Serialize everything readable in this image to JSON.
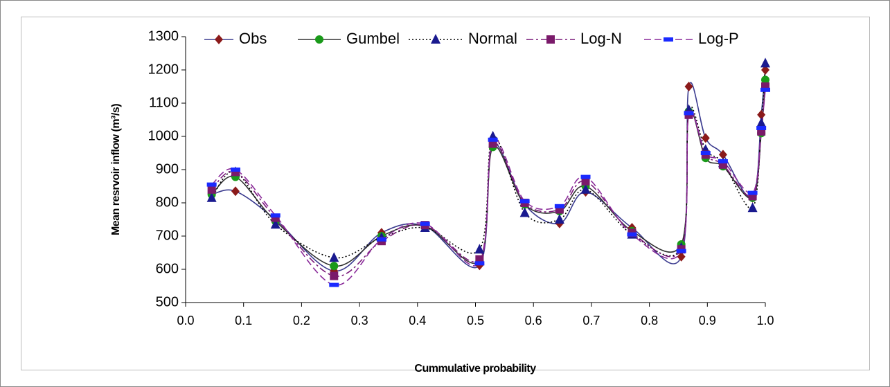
{
  "chart_data": {
    "type": "line",
    "x_label": "Cummulative probability",
    "y_label": "Mean resrvoir inflow (m³/s)",
    "x": [
      0.045,
      0.086,
      0.155,
      0.256,
      0.338,
      0.413,
      0.507,
      0.53,
      0.585,
      0.645,
      0.69,
      0.77,
      0.855,
      0.868,
      0.897,
      0.927,
      0.978,
      0.993,
      1.0
    ],
    "series": [
      {
        "name": "Obs",
        "color": "#3b3b8f",
        "marker": "diamond",
        "marker_color": "#8b1a1a",
        "line_style": "solid",
        "values": [
          825,
          835,
          750,
          595,
          710,
          730,
          612,
          975,
          795,
          738,
          833,
          725,
          638,
          1150,
          995,
          945,
          815,
          1065,
          1200
        ]
      },
      {
        "name": "Gumbel",
        "color": "#333333",
        "marker": "circle",
        "marker_color": "#1a9a1a",
        "line_style": "solid",
        "values": [
          825,
          878,
          745,
          610,
          700,
          730,
          625,
          968,
          795,
          775,
          850,
          715,
          675,
          1075,
          935,
          910,
          815,
          1010,
          1170
        ]
      },
      {
        "name": "Normal",
        "color": "#000000",
        "marker": "triangle",
        "marker_color": "#1a1a8f",
        "line_style": "dotted",
        "values": [
          815,
          893,
          735,
          635,
          695,
          725,
          660,
          1000,
          770,
          750,
          840,
          705,
          665,
          1080,
          960,
          920,
          785,
          1040,
          1220
        ]
      },
      {
        "name": "Log-N",
        "color": "#7a1a7a",
        "marker": "square",
        "marker_color": "#7a1a6a",
        "line_style": "dashdot",
        "values": [
          840,
          893,
          755,
          580,
          685,
          733,
          630,
          978,
          800,
          780,
          865,
          710,
          660,
          1065,
          945,
          915,
          820,
          1015,
          1150
        ]
      },
      {
        "name": "Log-P",
        "color": "#8a2a9a",
        "marker": "dash",
        "marker_color": "#1a2aff",
        "line_style": "dashed",
        "values": [
          855,
          900,
          762,
          553,
          690,
          737,
          618,
          990,
          805,
          790,
          878,
          705,
          655,
          1070,
          950,
          925,
          830,
          1025,
          1140
        ]
      }
    ],
    "xlim": [
      0,
      1
    ],
    "xticks": [
      {
        "value": 0,
        "label": "0.0"
      },
      0.1,
      0.2,
      0.3,
      0.4,
      0.5,
      0.6,
      0.7,
      0.8,
      0.9,
      {
        "value": 1,
        "label": "1.0"
      }
    ],
    "ylim": [
      500,
      1300
    ],
    "yticks": [
      500,
      600,
      700,
      800,
      900,
      1000,
      1100,
      1200,
      1300
    ],
    "grid": false,
    "legend": "top"
  }
}
